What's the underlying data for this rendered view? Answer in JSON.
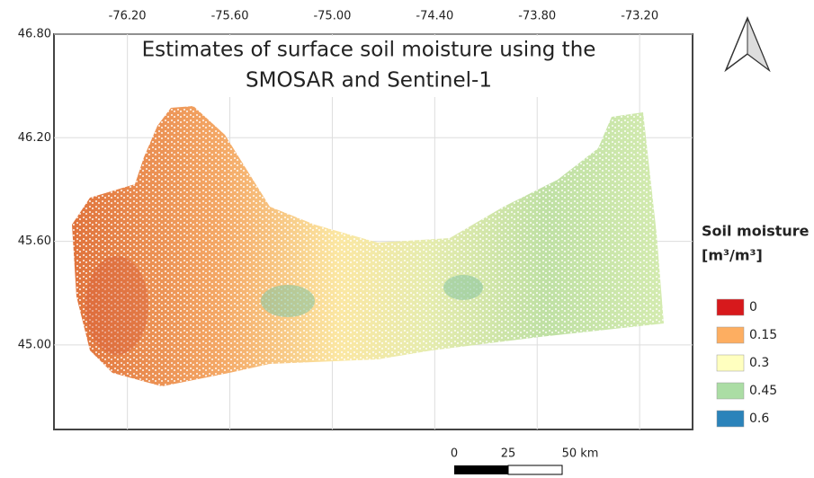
{
  "title_lines": [
    "Estimates of surface soil moisture using the",
    "SMOSAR and Sentinel-1"
  ],
  "map": {
    "lon_range": [
      -76.63,
      -72.89
    ],
    "lat_range": [
      44.51,
      46.8
    ],
    "lon_ticks": [
      {
        "value": -76.2,
        "label": "-76.20"
      },
      {
        "value": -75.6,
        "label": "-75.60"
      },
      {
        "value": -75.0,
        "label": "-75.00"
      },
      {
        "value": -74.4,
        "label": "-74.40"
      },
      {
        "value": -73.8,
        "label": "-73.80"
      },
      {
        "value": -73.2,
        "label": "-73.20"
      }
    ],
    "lat_ticks": [
      {
        "value": 46.8,
        "label": "46.80"
      },
      {
        "value": 46.2,
        "label": "46.20"
      },
      {
        "value": 45.6,
        "label": "45.60"
      },
      {
        "value": 45.0,
        "label": "45.00"
      }
    ]
  },
  "legend": {
    "title": "Soil moisture",
    "unit": "[m³/m³]",
    "items": [
      {
        "value": 0,
        "color": "#d7191c"
      },
      {
        "value": 0.15,
        "color": "#fdae61"
      },
      {
        "value": 0.3,
        "color": "#ffffbf"
      },
      {
        "value": 0.45,
        "color": "#abdda4"
      },
      {
        "value": 0.6,
        "color": "#2b83ba"
      }
    ]
  },
  "scale_bar": {
    "labels": [
      "0",
      "25",
      "50 km"
    ]
  }
}
